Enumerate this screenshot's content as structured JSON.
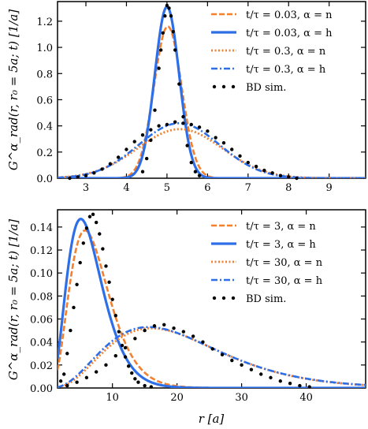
{
  "figure": {
    "ylabel": "G^α_rad(r, r₀ = 5a; t) [1/a]",
    "xlabel": "r [a]"
  },
  "chart_data": [
    {
      "type": "line",
      "xlim": [
        2.3,
        9.9
      ],
      "ylim": [
        0,
        1.35
      ],
      "xticks": [
        3,
        4,
        5,
        6,
        7,
        8,
        9
      ],
      "yticks": [
        0.0,
        0.2,
        0.4,
        0.6,
        0.8,
        1.0,
        1.2
      ],
      "yticklabels": [
        "0.0",
        "0.2",
        "0.4",
        "0.6",
        "0.8",
        "1.0",
        "1.2"
      ],
      "xlabel": "",
      "ylabel": "G^α_rad(r, r₀ = 5a; t) [1/a]",
      "legend_position": "top-right",
      "series": [
        {
          "name": "t/τ = 0.03, α = n",
          "style": "dashed",
          "color": "#F28030",
          "model": "gauss",
          "center": 5.02,
          "sigma": 0.34,
          "amp": 1.16
        },
        {
          "name": "t/τ = 0.03, α = h",
          "style": "solid",
          "color": "#2E6FE8",
          "model": "gauss",
          "center": 5.0,
          "sigma": 0.3,
          "amp": 1.31
        },
        {
          "name": "t/τ = 0.3, α = n",
          "style": "dotted",
          "color": "#F28030",
          "model": "gauss",
          "center": 5.32,
          "sigma": 1.05,
          "amp": 0.375
        },
        {
          "name": "t/τ = 0.3, α = h",
          "style": "dashdot",
          "color": "#2E6FE8",
          "model": "gauss",
          "center": 5.3,
          "sigma": 1.0,
          "amp": 0.42
        }
      ],
      "scatter": {
        "name": "BD sim.",
        "points": [
          [
            4.4,
            0.05
          ],
          [
            4.5,
            0.15
          ],
          [
            4.6,
            0.29
          ],
          [
            4.7,
            0.52
          ],
          [
            4.8,
            0.84
          ],
          [
            4.85,
            0.98
          ],
          [
            4.9,
            1.11
          ],
          [
            4.95,
            1.24
          ],
          [
            5.0,
            1.32
          ],
          [
            5.05,
            1.3
          ],
          [
            5.1,
            1.24
          ],
          [
            5.15,
            1.12
          ],
          [
            5.2,
            0.98
          ],
          [
            5.3,
            0.72
          ],
          [
            5.4,
            0.47
          ],
          [
            5.5,
            0.25
          ],
          [
            5.6,
            0.12
          ],
          [
            5.7,
            0.05
          ],
          [
            5.8,
            0.02
          ],
          [
            2.6,
            0.0
          ],
          [
            2.8,
            0.01
          ],
          [
            3.0,
            0.02
          ],
          [
            3.2,
            0.04
          ],
          [
            3.4,
            0.07
          ],
          [
            3.6,
            0.11
          ],
          [
            3.8,
            0.16
          ],
          [
            4.0,
            0.22
          ],
          [
            4.2,
            0.28
          ],
          [
            4.4,
            0.33
          ],
          [
            4.6,
            0.37
          ],
          [
            4.8,
            0.4
          ],
          [
            5.0,
            0.41
          ],
          [
            5.2,
            0.43
          ],
          [
            5.4,
            0.42
          ],
          [
            5.6,
            0.41
          ],
          [
            5.8,
            0.39
          ],
          [
            6.0,
            0.36
          ],
          [
            6.2,
            0.31
          ],
          [
            6.4,
            0.27
          ],
          [
            6.6,
            0.22
          ],
          [
            6.8,
            0.17
          ],
          [
            7.0,
            0.12
          ],
          [
            7.2,
            0.09
          ],
          [
            7.4,
            0.06
          ],
          [
            7.6,
            0.04
          ],
          [
            7.8,
            0.02
          ],
          [
            8.0,
            0.01
          ],
          [
            8.2,
            0.0
          ]
        ]
      }
    },
    {
      "type": "line",
      "xlim": [
        1.5,
        49.2
      ],
      "ylim": [
        0,
        0.155
      ],
      "xticks": [
        10,
        20,
        30,
        40
      ],
      "yticks": [
        0.0,
        0.02,
        0.04,
        0.06,
        0.08,
        0.1,
        0.12,
        0.14
      ],
      "yticklabels": [
        "0.00",
        "0.02",
        "0.04",
        "0.06",
        "0.08",
        "0.10",
        "0.12",
        "0.14"
      ],
      "xlabel": "r [a]",
      "ylabel": "G^α_rad(r, r₀ = 5a; t) [1/a]",
      "legend_position": "top-right",
      "series": [
        {
          "name": "t/τ = 3, α = n",
          "style": "dashed",
          "color": "#F28030",
          "model": "ray",
          "shape": 4.6,
          "scale": 1.6,
          "amp": 0.137
        },
        {
          "name": "t/τ = 3, α = h",
          "style": "solid",
          "color": "#2E6FE8",
          "model": "ray",
          "shape": 4.4,
          "scale": 1.5,
          "amp": 0.147
        },
        {
          "name": "t/τ = 30, α = n",
          "style": "dotted",
          "color": "#F28030",
          "model": "ray",
          "shape": 4.2,
          "scale": 5.0,
          "amp": 0.052
        },
        {
          "name": "t/τ = 30, α = h",
          "style": "dashdot",
          "color": "#2E6FE8",
          "model": "ray",
          "shape": 4.0,
          "scale": 5.2,
          "amp": 0.053
        }
      ],
      "scatter": {
        "name": "BD sim.",
        "points": [
          [
            2.0,
            0.006
          ],
          [
            2.5,
            0.012
          ],
          [
            3.0,
            0.03
          ],
          [
            3.5,
            0.05
          ],
          [
            4.0,
            0.07
          ],
          [
            4.5,
            0.09
          ],
          [
            5.0,
            0.109
          ],
          [
            5.5,
            0.126
          ],
          [
            6.0,
            0.139
          ],
          [
            6.5,
            0.149
          ],
          [
            7.0,
            0.151
          ],
          [
            7.5,
            0.144
          ],
          [
            8.0,
            0.134
          ],
          [
            8.5,
            0.121
          ],
          [
            9.0,
            0.106
          ],
          [
            9.5,
            0.092
          ],
          [
            10.0,
            0.077
          ],
          [
            10.5,
            0.063
          ],
          [
            11.0,
            0.049
          ],
          [
            11.5,
            0.037
          ],
          [
            12.0,
            0.027
          ],
          [
            12.5,
            0.019
          ],
          [
            13.0,
            0.013
          ],
          [
            13.5,
            0.008
          ],
          [
            14.0,
            0.005
          ],
          [
            15.0,
            0.002
          ],
          [
            16.0,
            0.001
          ],
          [
            3.0,
            0.002
          ],
          [
            4.5,
            0.005
          ],
          [
            6.0,
            0.009
          ],
          [
            7.5,
            0.014
          ],
          [
            9.0,
            0.02
          ],
          [
            10.5,
            0.028
          ],
          [
            12.0,
            0.035
          ],
          [
            13.5,
            0.043
          ],
          [
            15.0,
            0.05
          ],
          [
            16.5,
            0.054
          ],
          [
            18.0,
            0.055
          ],
          [
            19.5,
            0.052
          ],
          [
            21.0,
            0.049
          ],
          [
            22.5,
            0.045
          ],
          [
            24.0,
            0.04
          ],
          [
            25.5,
            0.034
          ],
          [
            27.0,
            0.029
          ],
          [
            28.5,
            0.024
          ],
          [
            30.0,
            0.02
          ],
          [
            31.5,
            0.016
          ],
          [
            33.0,
            0.012
          ],
          [
            34.5,
            0.009
          ],
          [
            36.0,
            0.006
          ],
          [
            37.5,
            0.004
          ],
          [
            39.0,
            0.002
          ],
          [
            40.5,
            0.001
          ]
        ]
      }
    }
  ]
}
